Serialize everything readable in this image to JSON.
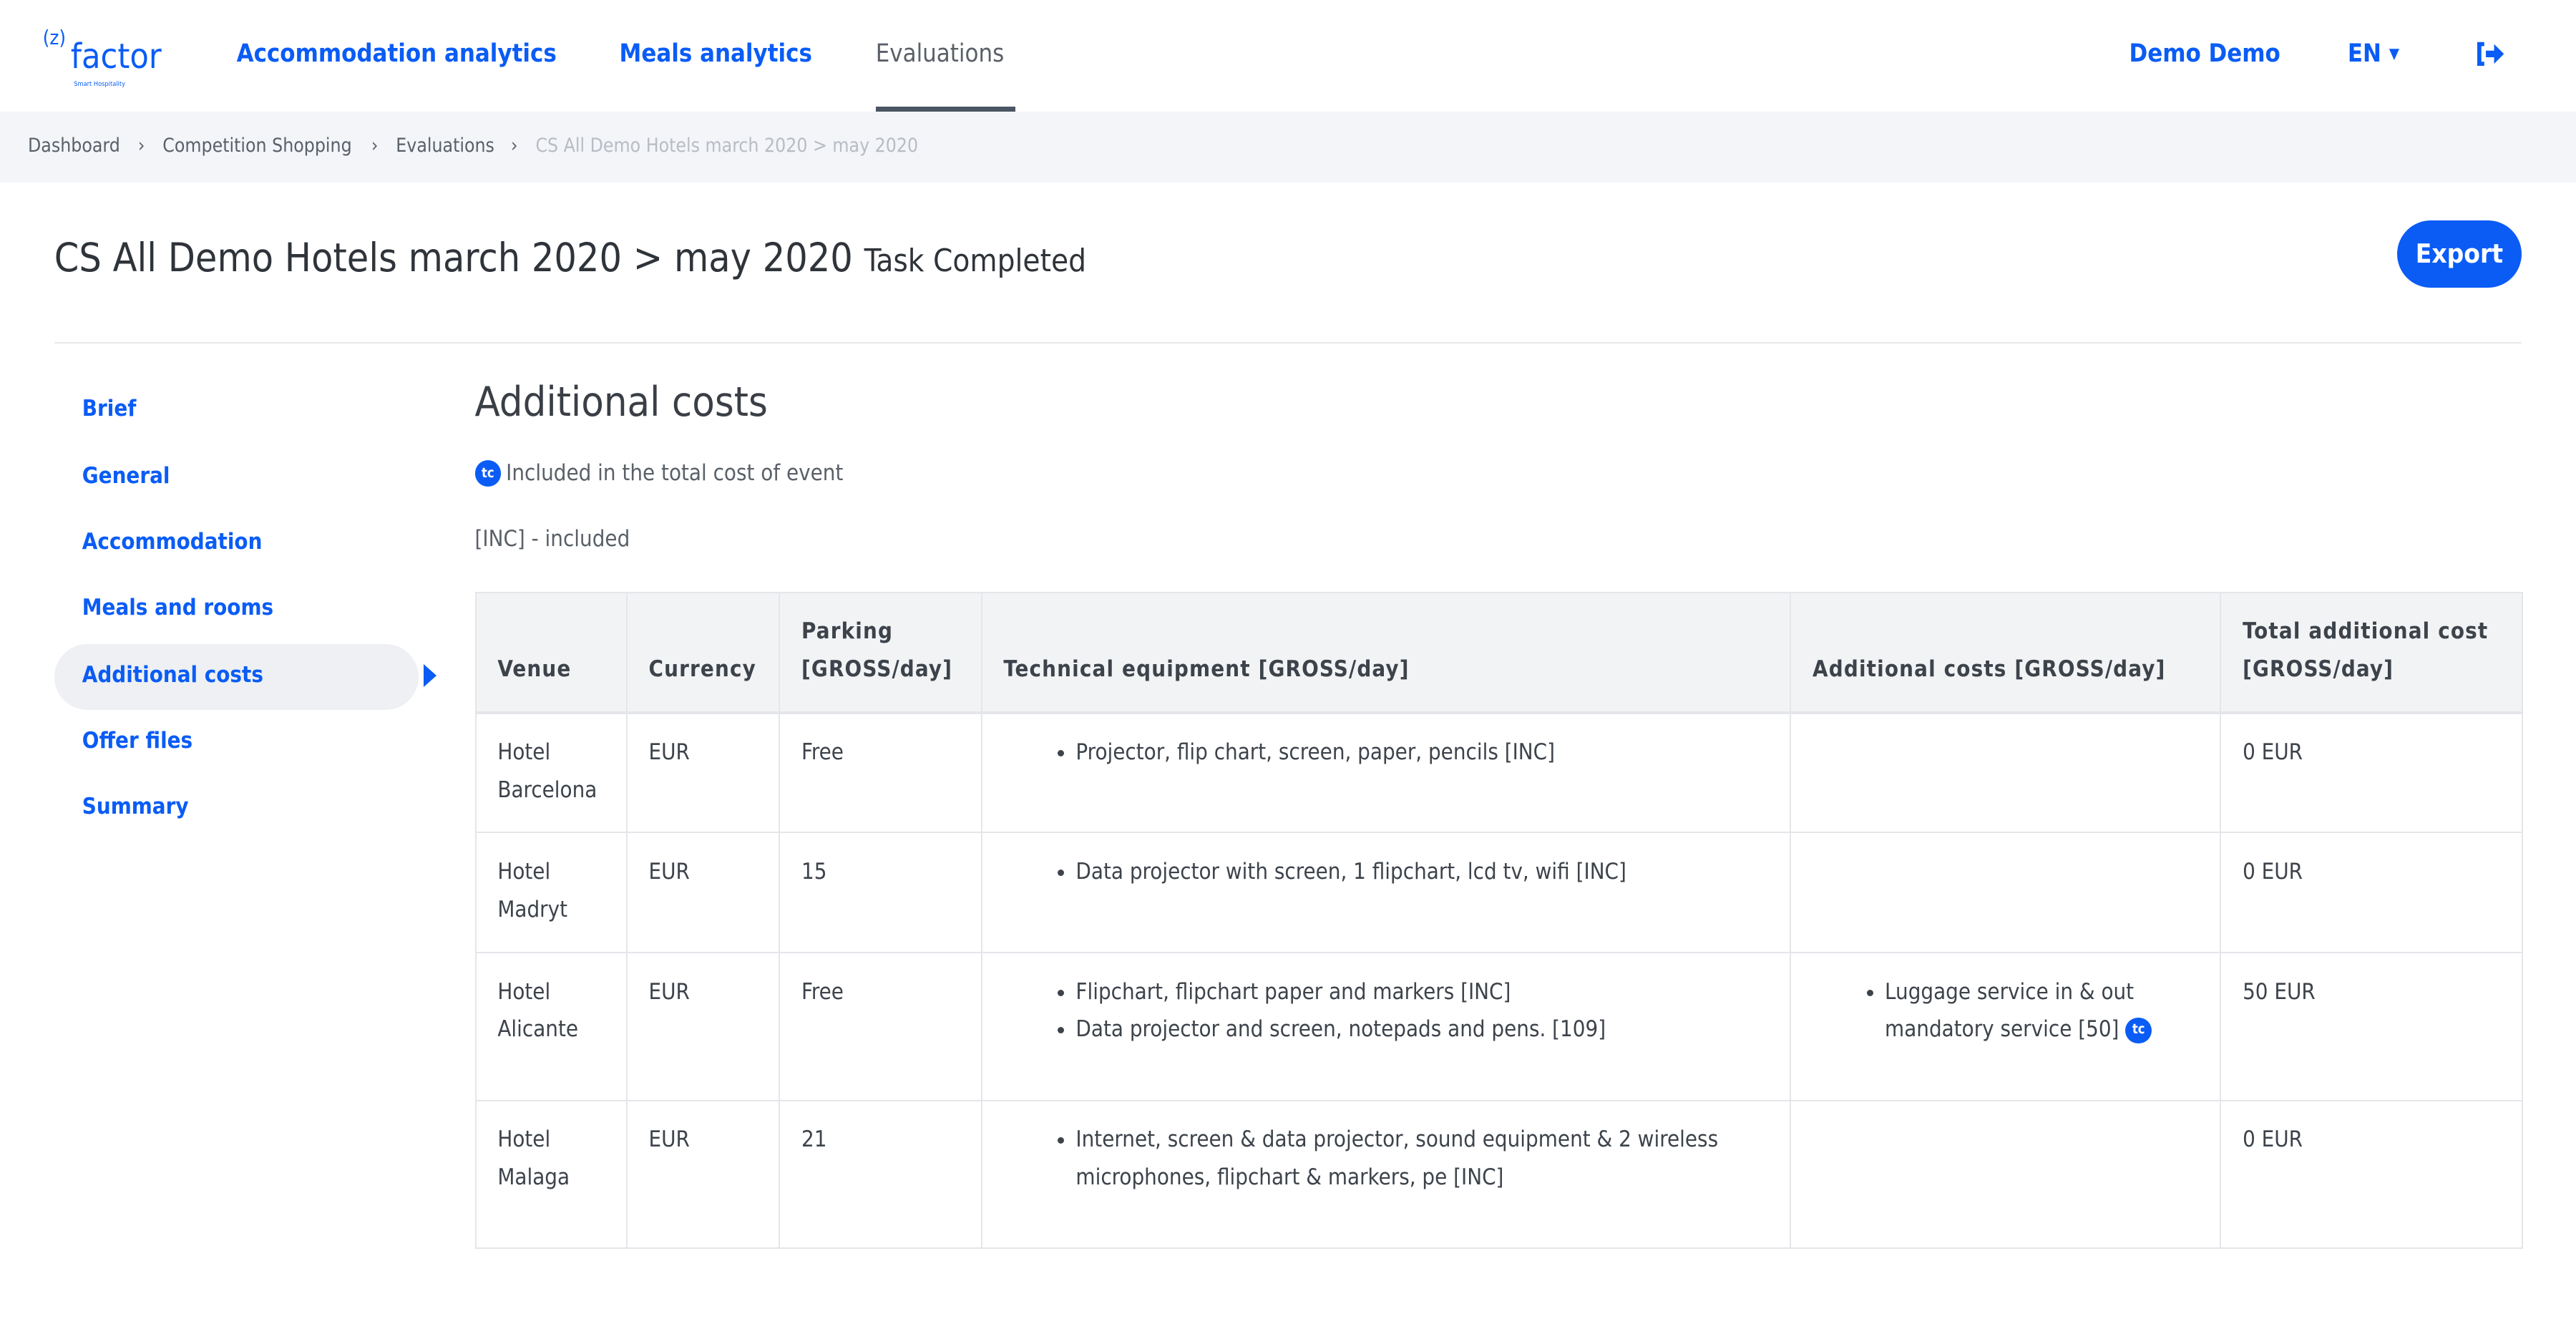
{
  "logo": {
    "bracket": "(z)",
    "word": "factor",
    "tagline": "Smart Hospitality"
  },
  "nav": {
    "items": [
      {
        "label": "Accommodation analytics"
      },
      {
        "label": "Meals analytics"
      },
      {
        "label": "Evaluations",
        "active": true
      }
    ],
    "user": "Demo Demo",
    "language": "EN"
  },
  "breadcrumb": [
    "Dashboard",
    "Competition Shopping",
    "Evaluations",
    "CS All Demo Hotels march 2020 > may 2020"
  ],
  "page": {
    "title": "CS All Demo Hotels march 2020 > may 2020",
    "status": "Task Completed",
    "export_label": "Export"
  },
  "sidebar": {
    "items": [
      {
        "label": "Brief"
      },
      {
        "label": "General"
      },
      {
        "label": "Accommodation"
      },
      {
        "label": "Meals and rooms"
      },
      {
        "label": "Additional costs",
        "active": true
      },
      {
        "label": "Offer files"
      },
      {
        "label": "Summary"
      }
    ]
  },
  "section": {
    "heading": "Additional costs",
    "tc_badge": "tc",
    "legend_tc": "Included in the total cost of event",
    "legend_inc": "[INC] - included"
  },
  "table": {
    "headers": [
      "Venue",
      "Currency",
      "Parking [GROSS/day]",
      "Technical equipment [GROSS/day]",
      "Additional costs [GROSS/day]",
      "Total additional cost [GROSS/day]"
    ],
    "rows": [
      {
        "venue": "Hotel Barcelona",
        "currency": "EUR",
        "parking": "Free",
        "technical": [
          "Projector, flip chart, screen, paper, pencils [INC]"
        ],
        "additional": [],
        "total": "0 EUR"
      },
      {
        "venue": "Hotel Madryt",
        "currency": "EUR",
        "parking": "15",
        "technical": [
          "Data projector with screen, 1 flipchart, lcd tv, wifi [INC]"
        ],
        "additional": [],
        "total": "0 EUR"
      },
      {
        "venue": "Hotel Alicante",
        "currency": "EUR",
        "parking": "Free",
        "technical": [
          "Flipchart, flipchart paper and markers [INC]",
          "Data projector and screen, notepads and pens. [109]"
        ],
        "additional": [
          "Luggage service in & out mandatory service [50]"
        ],
        "total": "50 EUR"
      },
      {
        "venue": "Hotel Malaga",
        "currency": "EUR",
        "parking": "21",
        "technical": [
          "Internet, screen & data projector, sound equipment & 2 wireless microphones, flipchart & markers, pe [INC]"
        ],
        "additional": [],
        "total": "0 EUR"
      }
    ]
  },
  "colors": {
    "accent": "#0a5cf5",
    "breadcrumb_bg": "#f3f5f9",
    "table_header_bg": "#f2f3f5"
  }
}
